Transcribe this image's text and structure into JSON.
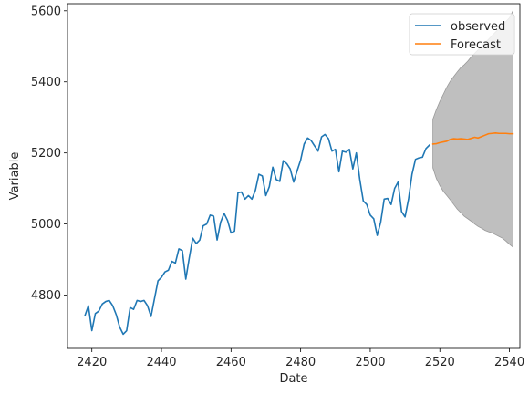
{
  "chart_data": {
    "type": "line",
    "title": "",
    "xlabel": "Date",
    "ylabel": "Variable",
    "xlim": [
      2413,
      2543
    ],
    "ylim": [
      4650,
      5620
    ],
    "x_ticks": [
      2420,
      2440,
      2460,
      2480,
      2500,
      2520,
      2540
    ],
    "y_ticks": [
      4800,
      5000,
      5200,
      5400,
      5600
    ],
    "legend_position": "top-right",
    "grid": false,
    "colors": {
      "observed": "#1f77b4",
      "forecast": "#ff7f0e",
      "interval": "#bfbfbf",
      "interval_edge": "#9a9a9a"
    },
    "series": [
      {
        "name": "observed",
        "x": [
          2418,
          2419,
          2420,
          2421,
          2422,
          2423,
          2424,
          2425,
          2426,
          2427,
          2428,
          2429,
          2430,
          2431,
          2432,
          2433,
          2434,
          2435,
          2436,
          2437,
          2438,
          2439,
          2440,
          2441,
          2442,
          2443,
          2444,
          2445,
          2446,
          2447,
          2448,
          2449,
          2450,
          2451,
          2452,
          2453,
          2454,
          2455,
          2456,
          2457,
          2458,
          2459,
          2460,
          2461,
          2462,
          2463,
          2464,
          2465,
          2466,
          2467,
          2468,
          2469,
          2470,
          2471,
          2472,
          2473,
          2474,
          2475,
          2476,
          2477,
          2478,
          2479,
          2480,
          2481,
          2482,
          2483,
          2484,
          2485,
          2486,
          2487,
          2488,
          2489,
          2490,
          2491,
          2492,
          2493,
          2494,
          2495,
          2496,
          2497,
          2498,
          2499,
          2500,
          2501,
          2502,
          2503,
          2504,
          2505,
          2506,
          2507,
          2508,
          2509,
          2510,
          2511,
          2512,
          2513,
          2514,
          2515,
          2516,
          2517
        ],
        "values": [
          4742,
          4770,
          4700,
          4748,
          4755,
          4775,
          4782,
          4785,
          4770,
          4745,
          4710,
          4690,
          4700,
          4765,
          4760,
          4785,
          4782,
          4785,
          4770,
          4740,
          4790,
          4840,
          4850,
          4865,
          4870,
          4895,
          4890,
          4930,
          4925,
          4845,
          4905,
          4960,
          4945,
          4955,
          4995,
          5000,
          5025,
          5022,
          4955,
          5005,
          5030,
          5010,
          4975,
          4980,
          5088,
          5090,
          5070,
          5080,
          5070,
          5095,
          5140,
          5135,
          5080,
          5105,
          5160,
          5125,
          5120,
          5178,
          5170,
          5155,
          5118,
          5150,
          5180,
          5225,
          5242,
          5235,
          5220,
          5205,
          5245,
          5252,
          5240,
          5205,
          5210,
          5147,
          5205,
          5202,
          5210,
          5155,
          5200,
          5125,
          5065,
          5055,
          5025,
          5015,
          4968,
          5005,
          5070,
          5072,
          5055,
          5100,
          5118,
          5035,
          5020,
          5070,
          5140,
          5182,
          5186,
          5188,
          5212,
          5222
        ]
      },
      {
        "name": "Forecast",
        "x": [
          2518,
          2519,
          2520,
          2521,
          2522,
          2523,
          2524,
          2525,
          2526,
          2527,
          2528,
          2529,
          2530,
          2531,
          2532,
          2533,
          2534,
          2535,
          2536,
          2537,
          2538,
          2539,
          2540,
          2541
        ],
        "values": [
          5225,
          5226,
          5229,
          5231,
          5233,
          5238,
          5240,
          5239,
          5240,
          5239,
          5238,
          5241,
          5244,
          5242,
          5246,
          5250,
          5254,
          5255,
          5256,
          5255,
          5255,
          5255,
          5254,
          5254
        ]
      }
    ],
    "confidence_interval": {
      "x": [
        2518,
        2519,
        2520,
        2521,
        2522,
        2523,
        2524,
        2525,
        2526,
        2527,
        2528,
        2529,
        2530,
        2531,
        2532,
        2533,
        2534,
        2535,
        2536,
        2537,
        2538,
        2539,
        2540,
        2541
      ],
      "upper": [
        5295,
        5322,
        5345,
        5365,
        5385,
        5402,
        5415,
        5428,
        5440,
        5448,
        5458,
        5470,
        5480,
        5490,
        5500,
        5510,
        5520,
        5530,
        5540,
        5550,
        5560,
        5570,
        5580,
        5600
      ],
      "lower": [
        5158,
        5128,
        5108,
        5092,
        5080,
        5068,
        5055,
        5042,
        5032,
        5022,
        5015,
        5008,
        5000,
        4993,
        4988,
        4982,
        4978,
        4975,
        4970,
        4965,
        4960,
        4952,
        4943,
        4935
      ]
    },
    "legend": [
      "observed",
      "Forecast"
    ]
  }
}
